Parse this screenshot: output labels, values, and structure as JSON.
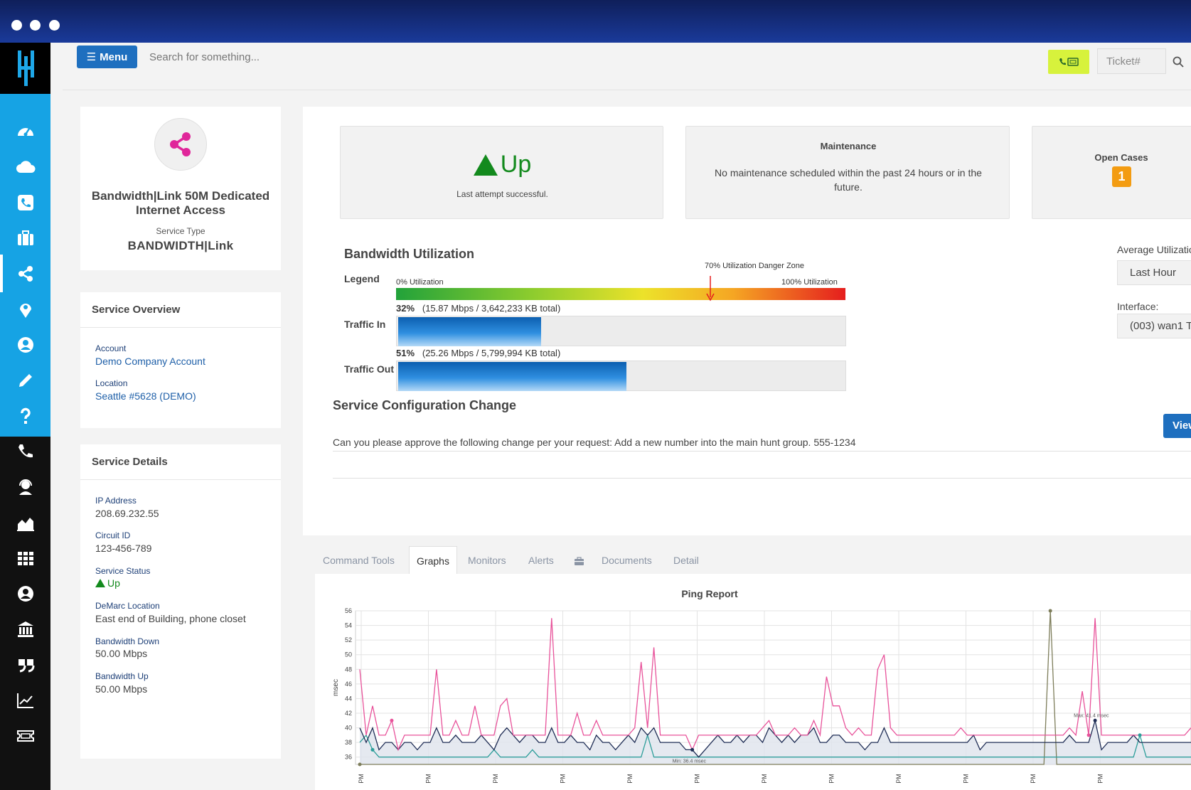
{
  "app": {
    "search_placeholder": "Search for something...",
    "menu_label": "Menu",
    "ticket_placeholder": "Ticket#"
  },
  "sidebar": {
    "top_items": [
      "dashboard-icon",
      "cloud-icon",
      "phone-square-icon",
      "briefcase-icon",
      "share-icon",
      "map-marker-icon",
      "user-circle-icon",
      "pencil-icon",
      "question-icon"
    ],
    "bottom_items": [
      "phone-icon",
      "support-agent-icon",
      "area-chart-icon",
      "grid-icon",
      "user-icon",
      "bank-icon",
      "quote-icon",
      "line-chart-icon",
      "ticket-icon"
    ],
    "active": "share-icon"
  },
  "service_card": {
    "name": "Bandwidth|Link 50M Dedicated Internet Access",
    "type_label": "Service Type",
    "type": "BANDWIDTH|Link"
  },
  "overview": {
    "title": "Service Overview",
    "account_label": "Account",
    "account": "Demo Company Account",
    "location_label": "Location",
    "location": "Seattle #5628 (DEMO)"
  },
  "details": {
    "title": "Service Details",
    "ip_label": "IP Address",
    "ip": "208.69.232.55",
    "circuit_label": "Circuit ID",
    "circuit": "123-456-789",
    "status_label": "Service Status",
    "status": "Up",
    "demarc_label": "DeMarc Location",
    "demarc": "East end of Building, phone closet",
    "down_label": "Bandwidth Down",
    "down": "50.00 Mbps",
    "up_label": "Bandwidth Up",
    "up": "50.00 Mbps"
  },
  "status_card": {
    "state": "Up",
    "subtitle": "Last attempt successful."
  },
  "maintenance_card": {
    "title": "Maintenance",
    "text": "No maintenance scheduled within the past 24 hours or in the future."
  },
  "cases_card": {
    "title": "Open Cases",
    "count": "1"
  },
  "bandwidth": {
    "title": "Bandwidth Utilization",
    "legend_label": "Legend",
    "zero_label": "0% Utilization",
    "hundred_label": "100% Utilization",
    "danger_label": "70% Utilization Danger Zone",
    "danger_pct": 70,
    "in_label": "Traffic In",
    "in_pct": 32,
    "in_pct_text": "32%",
    "in_detail": "(15.87 Mbps / 3,642,233 KB total)",
    "out_label": "Traffic Out",
    "out_pct": 51,
    "out_pct_text": "51%",
    "out_detail": "(25.26 Mbps / 5,799,994 KB total)",
    "avg_label": "Average Utilization",
    "avg_value": "Last Hour",
    "interface_label": "Interface:",
    "interface_value": "(003) wan1 T"
  },
  "config_change": {
    "title": "Service Configuration Change",
    "text": "Can you please approve the following change per your request: Add a new number into the main hunt group. 555-1234",
    "button": "View"
  },
  "tabs": [
    "Command Tools",
    "Graphs",
    "Monitors",
    "Alerts",
    "Documents",
    "Detail"
  ],
  "active_tab": "Graphs",
  "colors": {
    "primary": "#1e6fbf",
    "sidebar_accent": "#16a3e4",
    "up_green": "#138a1d",
    "badge_orange": "#f39c12",
    "call_button": "#d7f23c"
  },
  "chart_data": {
    "type": "line",
    "title": "Ping Report",
    "ylabel": "msec",
    "ylim": [
      35,
      56
    ],
    "yticks": [
      36,
      38,
      40,
      42,
      44,
      46,
      48,
      50,
      52,
      54,
      56
    ],
    "xtick_label": "PM",
    "grid": true,
    "annotations": [
      "Min: 36.4 msec",
      "Max: 41.4 msec"
    ],
    "series": [
      {
        "color": "#e8529a",
        "values": [
          48,
          39,
          43,
          39,
          39,
          41,
          37,
          39,
          39,
          39,
          39,
          39,
          48,
          39,
          39,
          41,
          39,
          39,
          43,
          39,
          39,
          39,
          43,
          44,
          39,
          39,
          39,
          39,
          39,
          39,
          55,
          39,
          39,
          39,
          42,
          39,
          39,
          41,
          39,
          39,
          39,
          39,
          39,
          40,
          49,
          40,
          51,
          39,
          39,
          39,
          39,
          39,
          37,
          39,
          39,
          39,
          39,
          39,
          39,
          39,
          39,
          39,
          39,
          40,
          41,
          39,
          39,
          39,
          40,
          39,
          39,
          41,
          39,
          47,
          43,
          43,
          40,
          39,
          40,
          39,
          39,
          48,
          50,
          40,
          39,
          39,
          39,
          39,
          39,
          39,
          39,
          39,
          39,
          39,
          40,
          39,
          39,
          39,
          39,
          39,
          39,
          39,
          39,
          39,
          39,
          39,
          39,
          39,
          39,
          39,
          39,
          40,
          39,
          45,
          39,
          55,
          39,
          39,
          39,
          39,
          39,
          39,
          39,
          39,
          39,
          39,
          39,
          39,
          39,
          39,
          40
        ]
      },
      {
        "color": "#1f2d55",
        "values": [
          40,
          38,
          40,
          37,
          38,
          38,
          37,
          38,
          38,
          37,
          38,
          38,
          40,
          38,
          38,
          39,
          38,
          38,
          38,
          39,
          38,
          37,
          39,
          40,
          39,
          38,
          39,
          39,
          38,
          38,
          40,
          38,
          38,
          39,
          38,
          38,
          37,
          39,
          38,
          38,
          37,
          38,
          39,
          38,
          40,
          39,
          40,
          38,
          38,
          38,
          38,
          37,
          37,
          36,
          37,
          38,
          39,
          38,
          38,
          39,
          38,
          39,
          39,
          38,
          40,
          39,
          38,
          39,
          38,
          39,
          39,
          40,
          38,
          38,
          39,
          39,
          38,
          38,
          38,
          37,
          38,
          38,
          40,
          38,
          38,
          38,
          38,
          38,
          38,
          38,
          38,
          38,
          38,
          38,
          38,
          38,
          39,
          37,
          38,
          38,
          38,
          38,
          38,
          38,
          38,
          38,
          38,
          38,
          38,
          38,
          38,
          39,
          38,
          38,
          38,
          41,
          37,
          38,
          38,
          38,
          38,
          39,
          38,
          38,
          38,
          38,
          38,
          38,
          38,
          38,
          38
        ]
      },
      {
        "color": "#2e9e9a",
        "values": [
          38,
          39,
          37,
          36,
          36,
          36,
          36,
          36,
          36,
          36,
          36,
          36,
          36,
          36,
          36,
          36,
          36,
          36,
          36,
          36,
          36,
          37,
          36,
          36,
          36,
          36,
          36,
          37,
          36,
          36,
          36,
          36,
          36,
          36,
          36,
          36,
          36,
          36,
          36,
          36,
          36,
          36,
          36,
          36,
          36,
          39,
          36,
          36,
          36,
          36,
          36,
          36,
          36,
          36,
          36,
          36,
          36,
          36,
          36,
          36,
          36,
          36,
          36,
          36,
          36,
          36,
          36,
          36,
          36,
          36,
          36,
          36,
          36,
          36,
          36,
          36,
          36,
          36,
          36,
          36,
          36,
          36,
          36,
          36,
          36,
          36,
          36,
          36,
          36,
          36,
          36,
          36,
          36,
          36,
          36,
          36,
          36,
          36,
          36,
          36,
          36,
          36,
          36,
          36,
          36,
          36,
          36,
          36,
          36,
          36,
          36,
          36,
          36,
          36,
          36,
          36,
          36,
          36,
          36,
          36,
          36,
          36,
          39,
          36,
          36,
          36,
          36,
          36,
          36,
          36,
          36
        ]
      },
      {
        "color": "#7d7d5a",
        "values": [
          35,
          35,
          35,
          35,
          35,
          35,
          35,
          35,
          35,
          35,
          35,
          35,
          35,
          35,
          35,
          35,
          35,
          35,
          35,
          35,
          35,
          35,
          35,
          35,
          35,
          35,
          35,
          35,
          35,
          35,
          35,
          35,
          35,
          35,
          35,
          35,
          35,
          35,
          35,
          35,
          35,
          35,
          35,
          35,
          35,
          35,
          35,
          35,
          35,
          35,
          35,
          35,
          35,
          35,
          35,
          35,
          35,
          35,
          35,
          35,
          35,
          35,
          35,
          35,
          35,
          35,
          35,
          35,
          35,
          35,
          35,
          35,
          35,
          35,
          35,
          35,
          35,
          35,
          35,
          35,
          35,
          35,
          35,
          35,
          35,
          35,
          35,
          35,
          35,
          35,
          35,
          35,
          35,
          35,
          35,
          35,
          35,
          35,
          35,
          35,
          35,
          35,
          35,
          35,
          35,
          35,
          35,
          35,
          56,
          35,
          35,
          35,
          35,
          35,
          35,
          35,
          35,
          35,
          35,
          35,
          35,
          35,
          35,
          35,
          35,
          35,
          35,
          35,
          35,
          35,
          35
        ]
      }
    ]
  }
}
